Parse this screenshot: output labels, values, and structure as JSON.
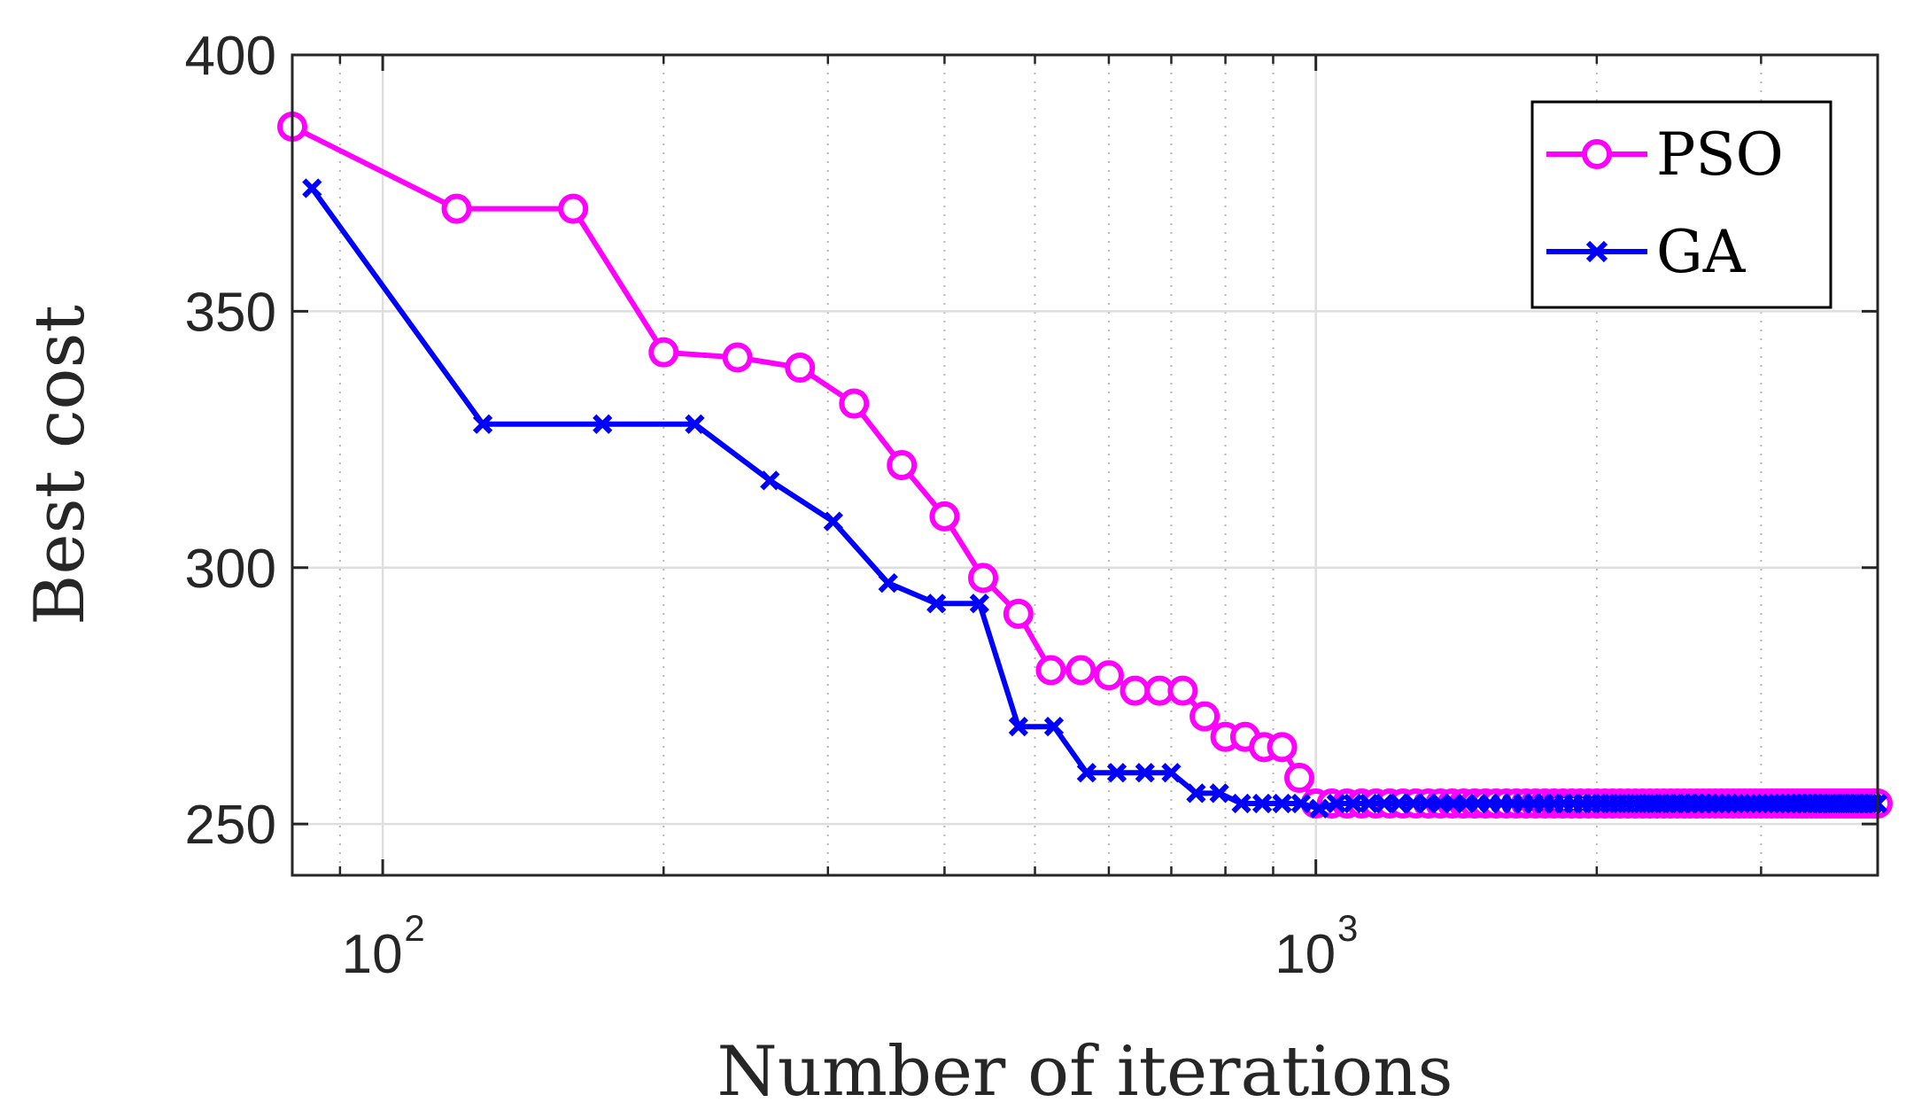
{
  "chart_data": {
    "type": "line",
    "title": "",
    "xlabel": "Number of iterations",
    "ylabel": "Best cost",
    "xscale": "log",
    "xlim": [
      80,
      4000
    ],
    "ylim": [
      240,
      400
    ],
    "x_ticks": [
      {
        "base": "10",
        "exp": "2",
        "value": 100
      },
      {
        "base": "10",
        "exp": "3",
        "value": 1000
      }
    ],
    "y_ticks": [
      {
        "label": "250",
        "value": 250
      },
      {
        "label": "300",
        "value": 300
      },
      {
        "label": "350",
        "value": 350
      },
      {
        "label": "400",
        "value": 400
      }
    ],
    "grid": true,
    "legend_position": "top-right",
    "series": [
      {
        "name": "PSO",
        "color": "#ff00ff",
        "marker": "circle",
        "x": [
          80,
          120,
          160,
          200,
          240,
          280,
          320,
          360,
          400,
          440,
          480,
          520,
          560,
          600,
          640,
          680,
          720,
          760,
          800,
          840,
          880,
          920,
          960,
          1000
        ],
        "y": [
          386,
          370,
          370,
          342,
          341,
          339,
          332,
          320,
          310,
          298,
          291,
          280,
          280,
          279,
          276,
          276,
          276,
          271,
          267,
          267,
          265,
          265,
          259,
          254
        ],
        "tail": {
          "from": 1000,
          "to": 4000,
          "step": 40,
          "value": 254
        }
      },
      {
        "name": "GA",
        "color": "#0000ff",
        "marker": "x",
        "x": [
          84,
          128,
          172,
          216,
          260,
          304,
          348,
          392,
          436,
          480,
          524,
          568,
          612,
          656,
          700,
          744,
          788,
          832,
          876,
          920,
          964,
          1008
        ],
        "y": [
          374,
          328,
          328,
          328,
          317,
          309,
          297,
          293,
          293,
          269,
          269,
          260,
          260,
          260,
          260,
          256,
          256,
          254,
          254,
          254,
          254,
          253
        ],
        "tail": {
          "from": 1008,
          "to": 4000,
          "step": 44,
          "value": 254
        }
      }
    ]
  }
}
